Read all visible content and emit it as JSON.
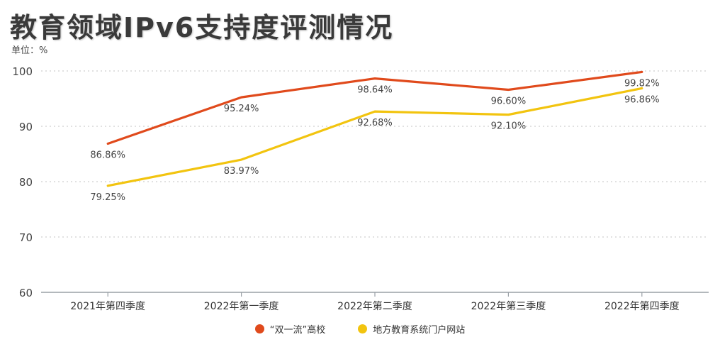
{
  "header": {
    "title": "教育领域IPv6支持度评测情况",
    "unit": "单位：%"
  },
  "chart_data": {
    "type": "line",
    "title": "教育领域IPv6支持度评测情况",
    "ylabel": "单位：%",
    "categories": [
      "2021年第四季度",
      "2022年第一季度",
      "2022年第二季度",
      "2022年第三季度",
      "2022年第四季度"
    ],
    "ylim": [
      60,
      100
    ],
    "yticks": [
      60,
      70,
      80,
      90,
      100
    ],
    "grid": "horizontal-dotted",
    "legend_position": "bottom",
    "series": [
      {
        "name": "“双一流”高校",
        "color": "#e04a1c",
        "values": [
          86.86,
          95.24,
          98.64,
          96.6,
          99.82
        ],
        "labels": [
          "86.86%",
          "95.24%",
          "98.64%",
          "96.60%",
          "99.82%"
        ]
      },
      {
        "name": "地方教育系统门户网站",
        "color": "#f2c40f",
        "values": [
          79.25,
          83.97,
          92.68,
          92.1,
          96.86
        ],
        "labels": [
          "79.25%",
          "83.97%",
          "92.68%",
          "92.10%",
          "96.86%"
        ]
      }
    ]
  }
}
